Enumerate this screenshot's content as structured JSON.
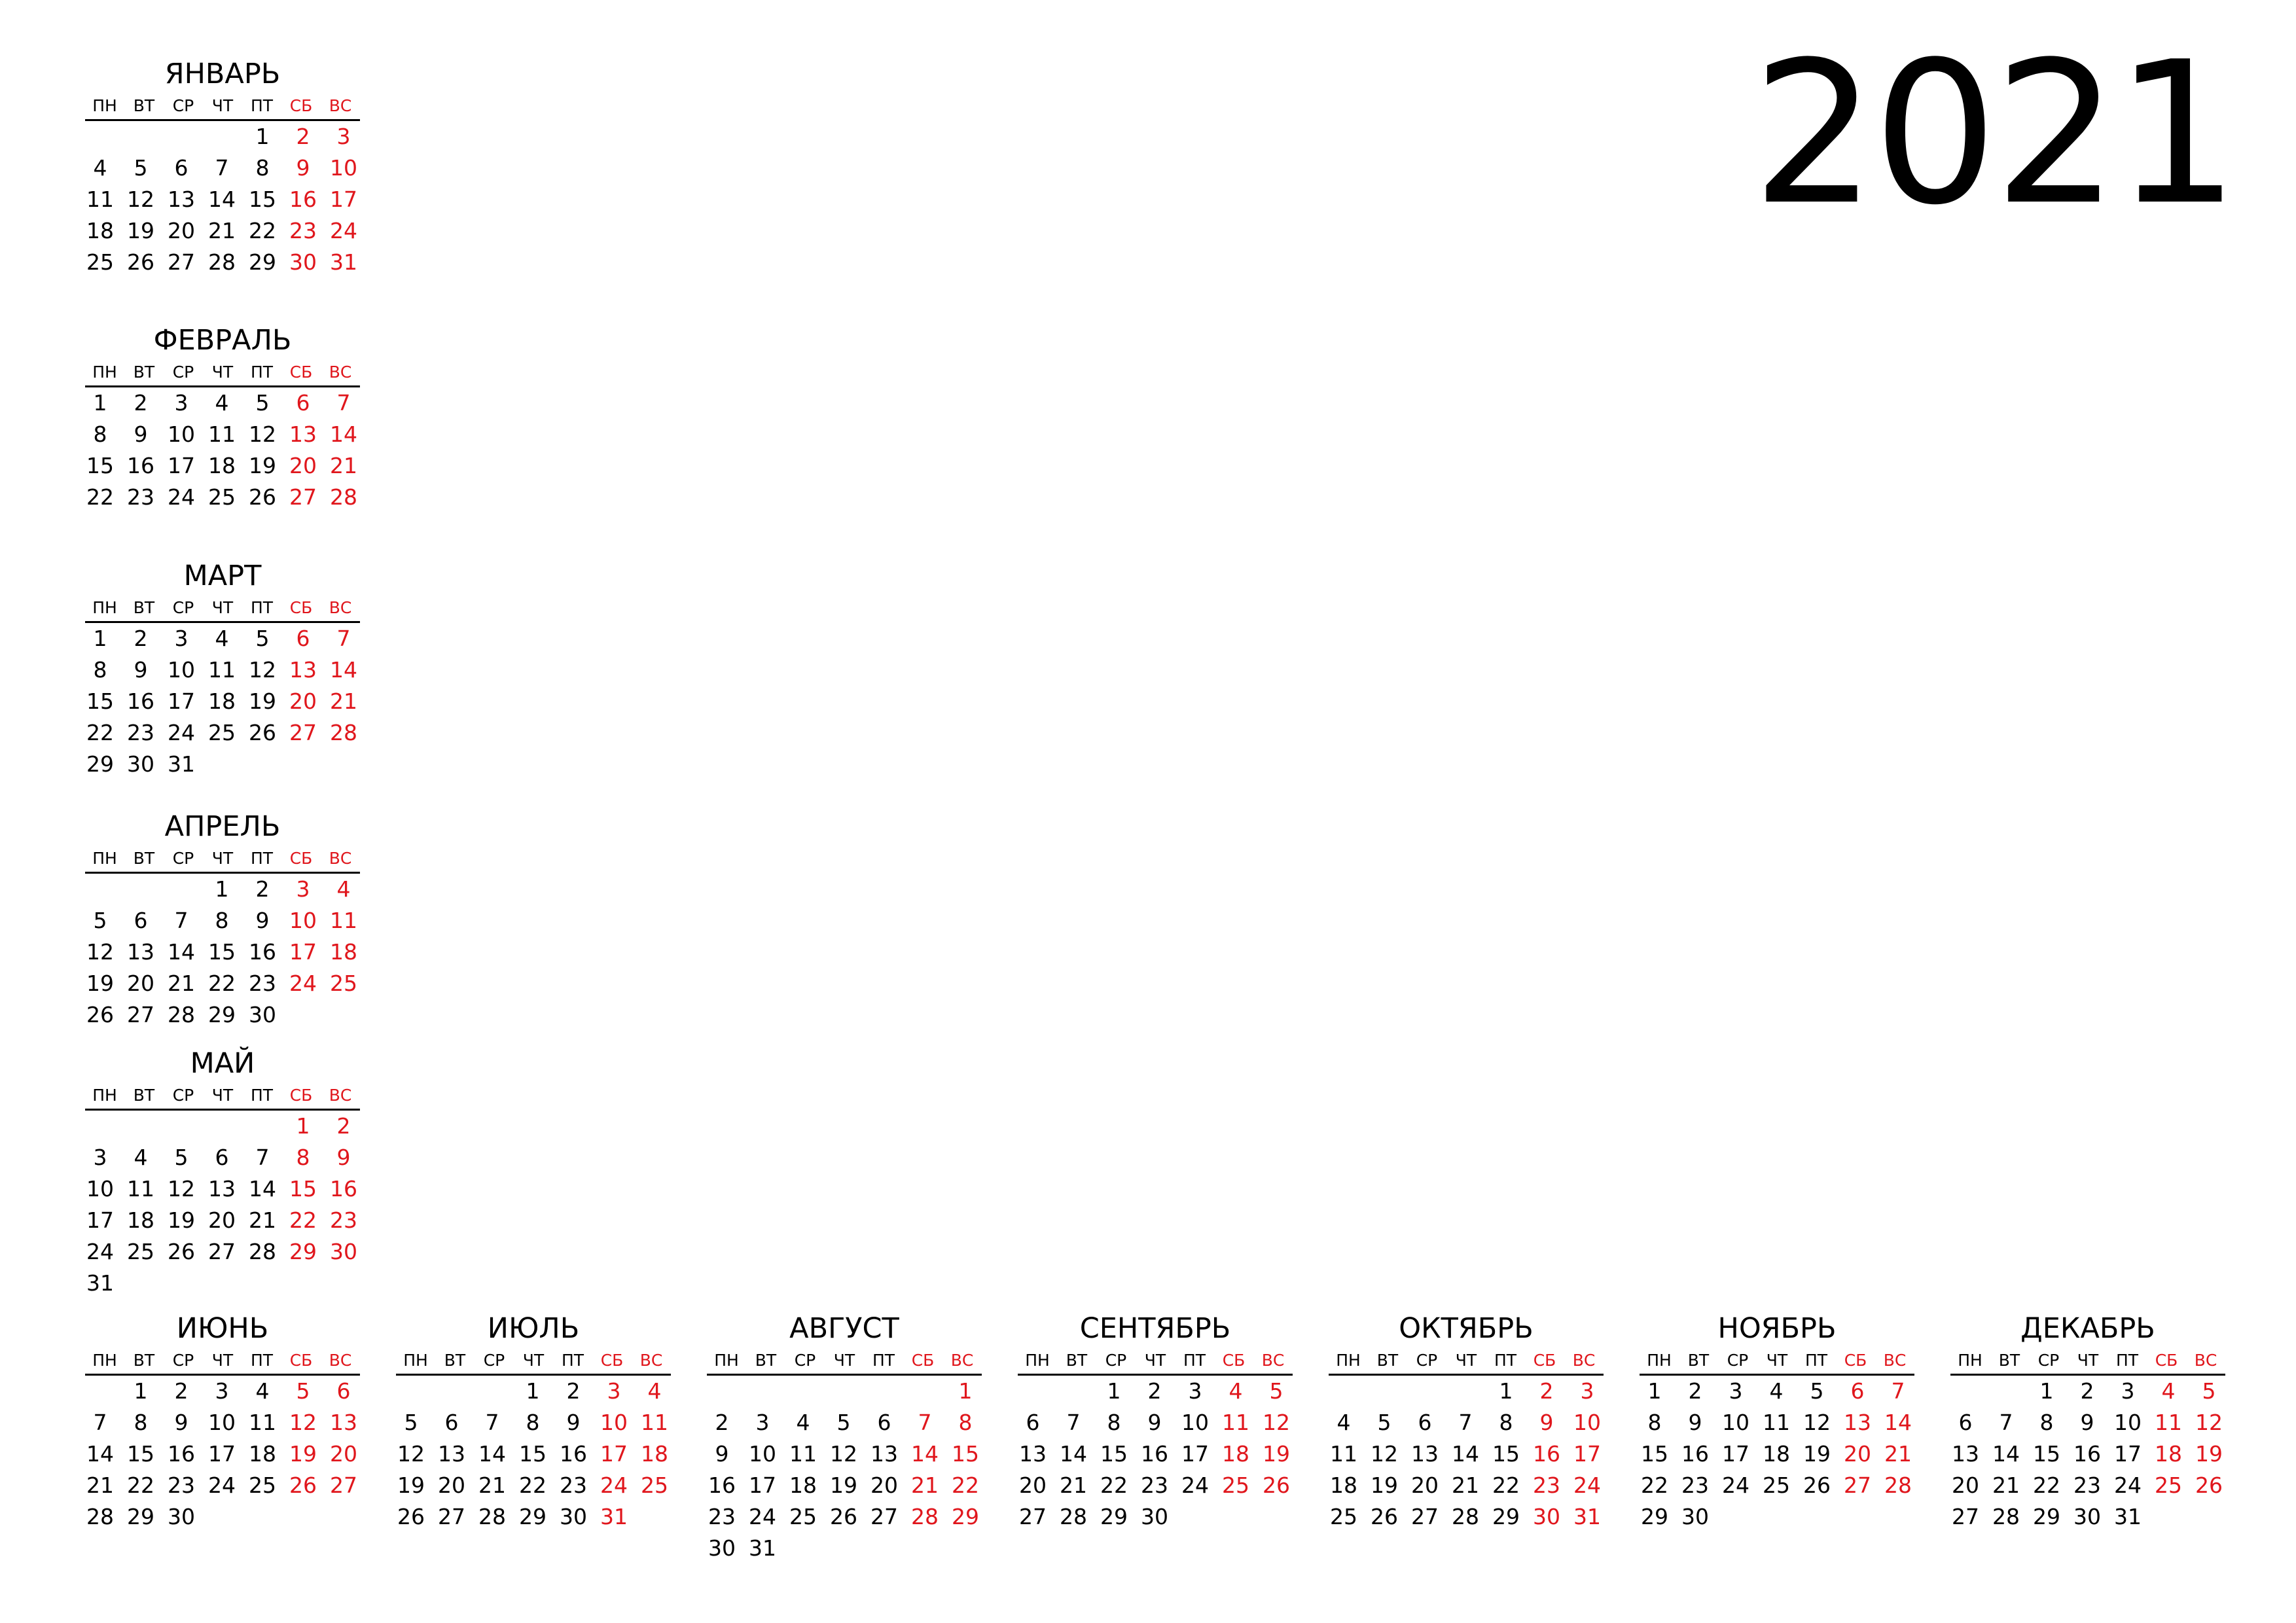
{
  "year": "2021",
  "weekdays": [
    "ПН",
    "ВТ",
    "СР",
    "ЧТ",
    "ПТ",
    "СБ",
    "ВС"
  ],
  "colors": {
    "text": "#000000",
    "weekend": "#e0161c",
    "background": "#ffffff"
  },
  "months": [
    {
      "name": "ЯНВАРЬ",
      "start": 4,
      "days": 31
    },
    {
      "name": "ФЕВРАЛЬ",
      "start": 0,
      "days": 28
    },
    {
      "name": "МАРТ",
      "start": 0,
      "days": 31
    },
    {
      "name": "АПРЕЛЬ",
      "start": 3,
      "days": 30
    },
    {
      "name": "МАЙ",
      "start": 5,
      "days": 31
    },
    {
      "name": "ИЮНЬ",
      "start": 1,
      "days": 30
    },
    {
      "name": "ИЮЛЬ",
      "start": 3,
      "days": 31
    },
    {
      "name": "АВГУСТ",
      "start": 6,
      "days": 31
    },
    {
      "name": "СЕНТЯБРЬ",
      "start": 2,
      "days": 30
    },
    {
      "name": "ОКТЯБРЬ",
      "start": 4,
      "days": 31
    },
    {
      "name": "НОЯБРЬ",
      "start": 0,
      "days": 30
    },
    {
      "name": "ДЕКАБРЬ",
      "start": 2,
      "days": 31
    }
  ]
}
